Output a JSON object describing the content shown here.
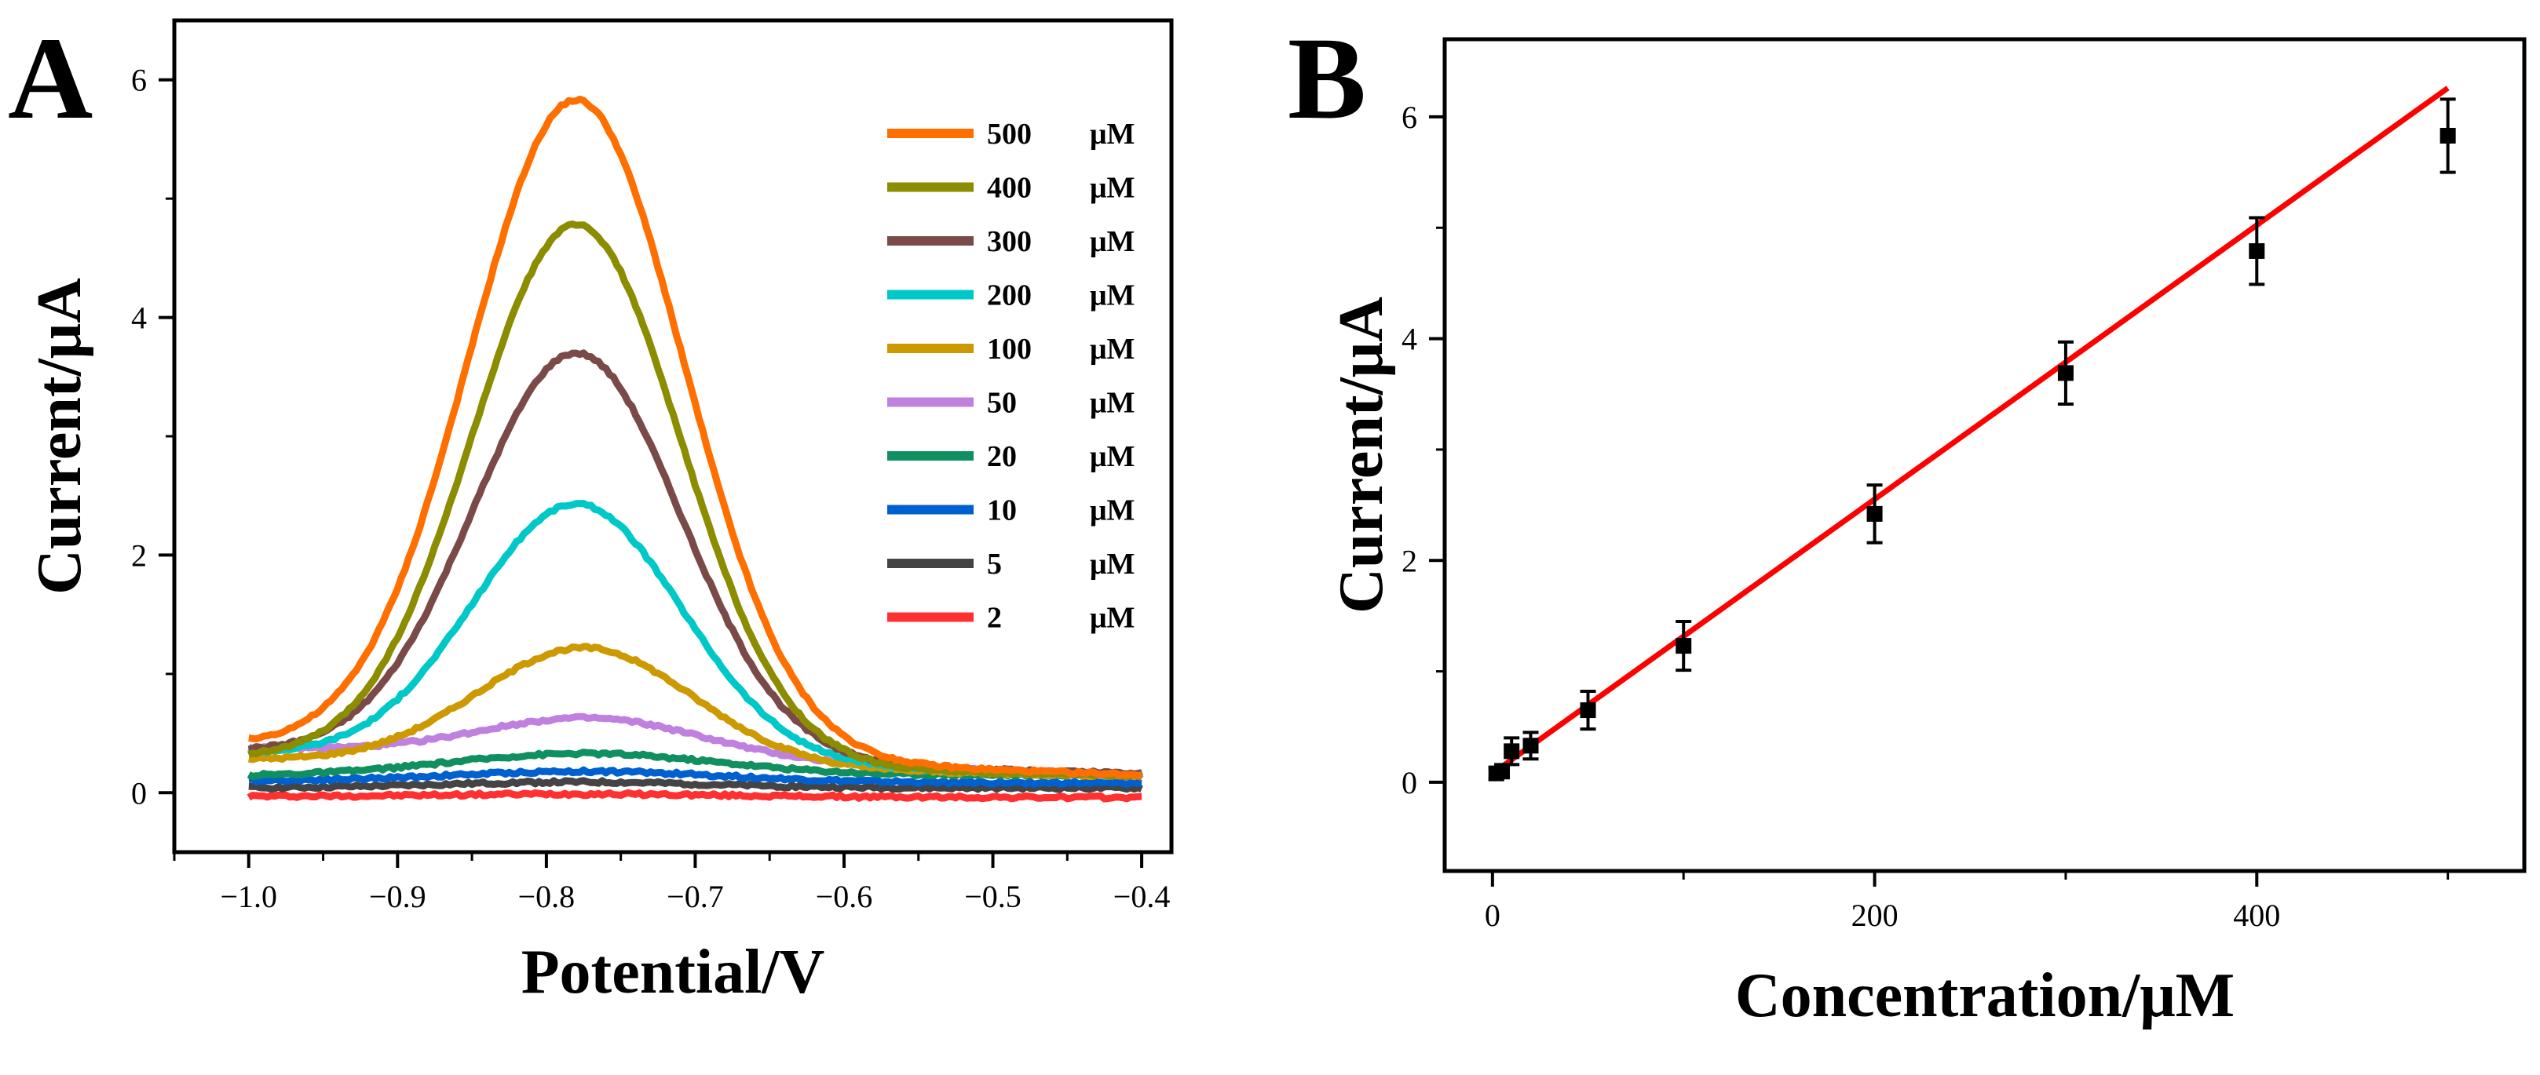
{
  "chart_data": [
    {
      "panel": "A",
      "type": "line",
      "xlabel": "Potential/V",
      "ylabel": "Current/μA",
      "xlim": [
        -1.05,
        -0.38
      ],
      "ylim": [
        -0.5,
        6.5
      ],
      "xticks": [
        -1.0,
        -0.9,
        -0.8,
        -0.7,
        -0.6,
        -0.5,
        -0.4
      ],
      "xtick_labels": [
        "−1.0",
        "−0.9",
        "−0.8",
        "−0.7",
        "−0.6",
        "−0.5",
        "−0.4"
      ],
      "yticks": [
        0,
        2,
        4,
        6
      ],
      "ytick_labels": [
        "0",
        "2",
        "4",
        "6"
      ],
      "legend_position": "top-right",
      "series": [
        {
          "name": "500 μM",
          "num": "500",
          "unit": "μM",
          "color": "#FF6F00",
          "peak_x": -0.78,
          "peak_y": 5.83,
          "width": 0.072,
          "start": 0.4,
          "end": 0.15
        },
        {
          "name": "400 μM",
          "num": "400",
          "unit": "μM",
          "color": "#8C8C00",
          "peak_x": -0.78,
          "peak_y": 4.78,
          "width": 0.07,
          "start": 0.3,
          "end": 0.14
        },
        {
          "name": "300 μM",
          "num": "300",
          "unit": "μM",
          "color": "#7A4A48",
          "peak_x": -0.78,
          "peak_y": 3.7,
          "width": 0.07,
          "start": 0.35,
          "end": 0.16
        },
        {
          "name": "200 μM",
          "num": "200",
          "unit": "μM",
          "color": "#00C8C8",
          "peak_x": -0.78,
          "peak_y": 2.43,
          "width": 0.07,
          "start": 0.33,
          "end": 0.15
        },
        {
          "name": "100 μM",
          "num": "100",
          "unit": "μM",
          "color": "#CC9900",
          "peak_x": -0.775,
          "peak_y": 1.22,
          "width": 0.072,
          "start": 0.28,
          "end": 0.14
        },
        {
          "name": "50 μM",
          "num": "50",
          "unit": "μM",
          "color": "#C080E0",
          "peak_x": -0.775,
          "peak_y": 0.63,
          "width": 0.075,
          "start": 0.38,
          "end": 0.15
        },
        {
          "name": "20 μM",
          "num": "20",
          "unit": "μM",
          "color": "#109060",
          "peak_x": -0.775,
          "peak_y": 0.33,
          "width": 0.09,
          "start": 0.14,
          "end": 0.15
        },
        {
          "name": "10 μM",
          "num": "10",
          "unit": "μM",
          "color": "#0060D0",
          "peak_x": -0.775,
          "peak_y": 0.18,
          "width": 0.09,
          "start": 0.1,
          "end": 0.08
        },
        {
          "name": "5 μM",
          "num": "5",
          "unit": "μM",
          "color": "#444444",
          "peak_x": -0.78,
          "peak_y": 0.09,
          "width": 0.09,
          "start": 0.04,
          "end": 0.04
        },
        {
          "name": "2 μM",
          "num": "2",
          "unit": "μM",
          "color": "#FF3030",
          "peak_x": -0.78,
          "peak_y": -0.01,
          "width": 0.09,
          "start": -0.03,
          "end": -0.04
        }
      ]
    },
    {
      "panel": "B",
      "type": "scatter",
      "xlabel": "Concentration/μM",
      "ylabel": "Current/μA",
      "xlim": [
        -25,
        540
      ],
      "ylim": [
        -0.8,
        6.7
      ],
      "xticks": [
        0,
        200,
        400
      ],
      "xtick_labels": [
        "0",
        "200",
        "400"
      ],
      "yticks": [
        0,
        2,
        4,
        6
      ],
      "ytick_labels": [
        "0",
        "2",
        "4",
        "6"
      ],
      "x": [
        2,
        5,
        10,
        20,
        50,
        100,
        200,
        300,
        400,
        500
      ],
      "y": [
        0.08,
        0.1,
        0.28,
        0.33,
        0.65,
        1.23,
        2.42,
        3.69,
        4.79,
        5.83
      ],
      "error": [
        0.05,
        0.06,
        0.12,
        0.12,
        0.17,
        0.22,
        0.26,
        0.28,
        0.3,
        0.33
      ],
      "fit": {
        "slope": 0.01236,
        "intercept": 0.08,
        "x_range": [
          0,
          500
        ],
        "color": "#FF0000"
      },
      "marker_color": "#000000"
    }
  ]
}
